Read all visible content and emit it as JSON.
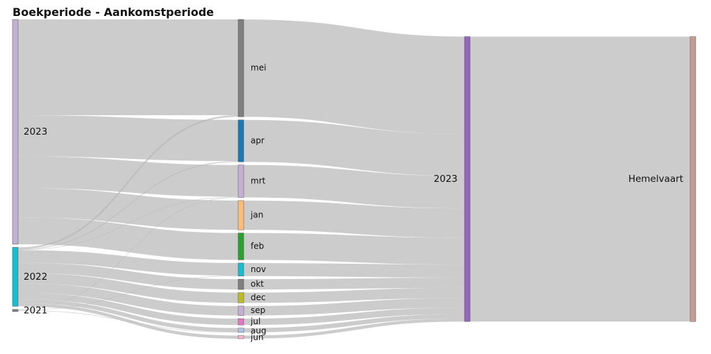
{
  "title": "Boekperiode - Aankomstperiode",
  "chart_data": {
    "type": "sankey",
    "title": "Boekperiode - Aankomstperiode",
    "columns": [
      [
        {
          "id": "b2023",
          "label": "2023",
          "color": "#c5b0d5"
        },
        {
          "id": "b2022",
          "label": "2022",
          "color": "#17becf"
        },
        {
          "id": "b2021",
          "label": "2021",
          "color": "#7f7f7f"
        }
      ],
      [
        {
          "id": "mei",
          "label": "mei",
          "color": "#7f7f7f"
        },
        {
          "id": "apr",
          "label": "apr",
          "color": "#1f77b4"
        },
        {
          "id": "mrt",
          "label": "mrt",
          "color": "#c5b0d5"
        },
        {
          "id": "jan",
          "label": "jan",
          "color": "#ffbb78"
        },
        {
          "id": "feb",
          "label": "feb",
          "color": "#2ca02c"
        },
        {
          "id": "nov",
          "label": "nov",
          "color": "#17becf"
        },
        {
          "id": "okt",
          "label": "okt",
          "color": "#7f7f7f"
        },
        {
          "id": "dec",
          "label": "dec",
          "color": "#bcbd22"
        },
        {
          "id": "sep",
          "label": "sep",
          "color": "#c5b0d5"
        },
        {
          "id": "jul",
          "label": "jul",
          "color": "#e377c2"
        },
        {
          "id": "aug",
          "label": "aug",
          "color": "#aec7e8"
        },
        {
          "id": "jun",
          "label": "jun",
          "color": "#f7b6d2"
        }
      ],
      [
        {
          "id": "a2023",
          "label": "2023",
          "color": "#9467bd"
        }
      ],
      [
        {
          "id": "hemelvaart",
          "label": "Hemelvaart",
          "color": "#c49c94"
        }
      ]
    ],
    "links": [
      {
        "source": "b2023",
        "target": "mei",
        "value": 121
      },
      {
        "source": "b2023",
        "target": "apr",
        "value": 52
      },
      {
        "source": "b2023",
        "target": "mrt",
        "value": 40
      },
      {
        "source": "b2023",
        "target": "jan",
        "value": 37
      },
      {
        "source": "b2023",
        "target": "feb",
        "value": 34
      },
      {
        "source": "b2022",
        "target": "mei",
        "value": 2
      },
      {
        "source": "b2022",
        "target": "apr",
        "value": 1
      },
      {
        "source": "b2022",
        "target": "mrt",
        "value": 0.5
      },
      {
        "source": "b2022",
        "target": "nov",
        "value": 16
      },
      {
        "source": "b2022",
        "target": "okt",
        "value": 13
      },
      {
        "source": "b2022",
        "target": "dec",
        "value": 13
      },
      {
        "source": "b2022",
        "target": "sep",
        "value": 12
      },
      {
        "source": "b2022",
        "target": "jul",
        "value": 8
      },
      {
        "source": "b2022",
        "target": "aug",
        "value": 5
      },
      {
        "source": "b2022",
        "target": "jun",
        "value": 4
      },
      {
        "source": "b2021",
        "target": "mrt",
        "value": 0.5
      },
      {
        "source": "b2021",
        "target": "nov",
        "value": 0.5
      },
      {
        "source": "b2021",
        "target": "aug",
        "value": 0.5
      },
      {
        "source": "mei",
        "target": "a2023",
        "value": 123
      },
      {
        "source": "apr",
        "target": "a2023",
        "value": 53
      },
      {
        "source": "mrt",
        "target": "a2023",
        "value": 41
      },
      {
        "source": "jan",
        "target": "a2023",
        "value": 37
      },
      {
        "source": "feb",
        "target": "a2023",
        "value": 34
      },
      {
        "source": "nov",
        "target": "a2023",
        "value": 16.5
      },
      {
        "source": "okt",
        "target": "a2023",
        "value": 13
      },
      {
        "source": "dec",
        "target": "a2023",
        "value": 13
      },
      {
        "source": "sep",
        "target": "a2023",
        "value": 12
      },
      {
        "source": "jul",
        "target": "a2023",
        "value": 8
      },
      {
        "source": "aug",
        "target": "a2023",
        "value": 5.5
      },
      {
        "source": "jun",
        "target": "a2023",
        "value": 4
      },
      {
        "source": "a2023",
        "target": "hemelvaart",
        "value": 360
      }
    ]
  }
}
